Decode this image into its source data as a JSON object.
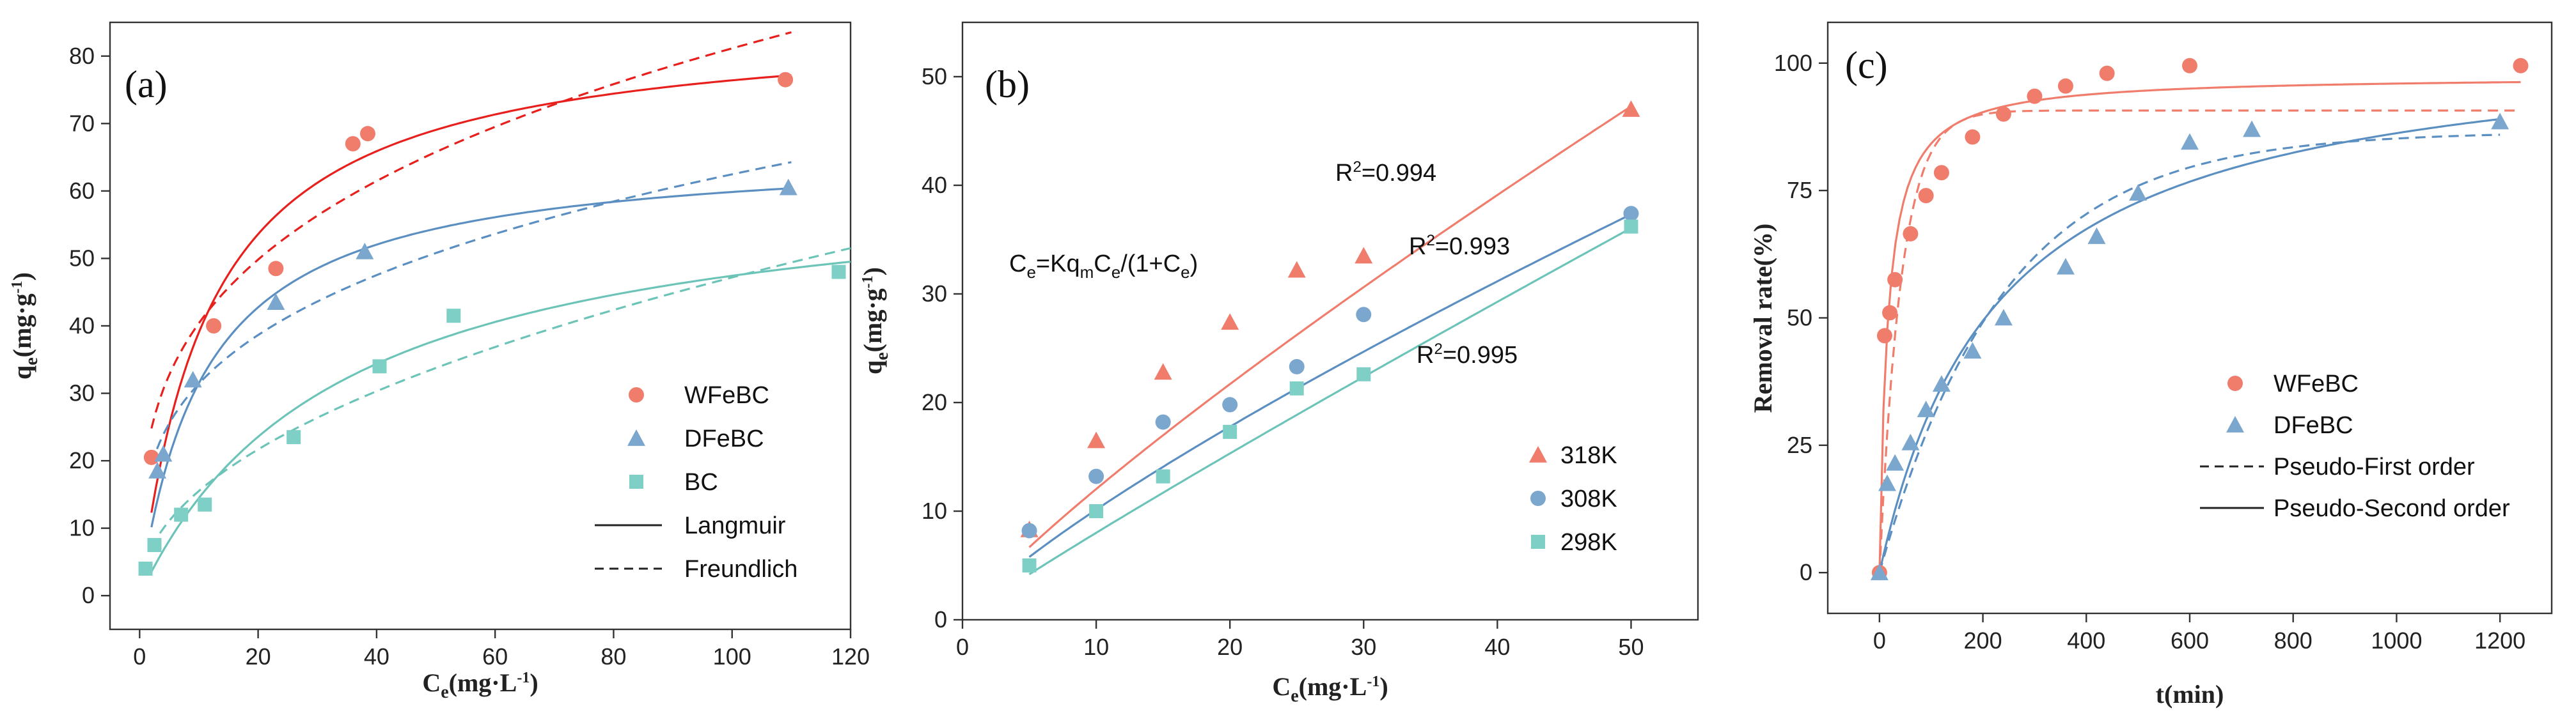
{
  "chart_data": [
    {
      "panel": "(a)",
      "type": "scatter",
      "xlabel": {
        "base": "C",
        "sub": "e",
        "rest": "(mg·L",
        "sup": "-1",
        "end": ")"
      },
      "ylabel": {
        "base": "q",
        "sub": "e",
        "rest": "(mg·g",
        "sup": "-1",
        "end": ")"
      },
      "xlim": [
        -5,
        120
      ],
      "ylim": [
        -5,
        85
      ],
      "xticks": [
        0,
        20,
        40,
        60,
        80,
        100,
        120
      ],
      "yticks": [
        0,
        10,
        20,
        30,
        40,
        50,
        60,
        70,
        80
      ],
      "series": [
        {
          "name": "WFeBC",
          "marker": "circle",
          "color": "#f07c6c",
          "points": [
            [
              2,
              20.5
            ],
            [
              12.5,
              40
            ],
            [
              23,
              48.5
            ],
            [
              36,
              67
            ],
            [
              38.5,
              68.5
            ],
            [
              109,
              76.5
            ]
          ],
          "fit_langmuir": {
            "qm": 85.5,
            "K": 0.084,
            "xmin": 2,
            "xmax": 110,
            "color": "#e8201d"
          },
          "fit_freundlich": {
            "kf": 20.1,
            "n": 3.3,
            "xmin": 2,
            "xmax": 110,
            "color": "#e8201d"
          }
        },
        {
          "name": "DFeBC",
          "marker": "triangle",
          "color": "#7ba7cf",
          "points": [
            [
              3,
              18.5
            ],
            [
              4,
              21
            ],
            [
              9,
              32
            ],
            [
              23,
              43.5
            ],
            [
              38,
              51
            ],
            [
              109.5,
              60.5
            ]
          ],
          "fit_langmuir": {
            "qm": 66.5,
            "K": 0.09,
            "xmin": 2,
            "xmax": 110,
            "color": "#5b8fc2"
          },
          "fit_freundlich": {
            "kf": 15.8,
            "n": 3.35,
            "xmin": 2,
            "xmax": 110,
            "color": "#5b8fc2"
          }
        },
        {
          "name": "BC",
          "marker": "square",
          "color": "#7ed0c7",
          "points": [
            [
              1,
              4
            ],
            [
              2.5,
              7.5
            ],
            [
              7,
              12
            ],
            [
              11,
              13.5
            ],
            [
              26,
              23.5
            ],
            [
              40.5,
              34
            ],
            [
              53,
              41.5
            ],
            [
              118,
              48
            ]
          ],
          "fit_langmuir": {
            "qm": 63.5,
            "K": 0.0295,
            "xmin": 2,
            "xmax": 120,
            "color": "#6cc4b9"
          },
          "fit_freundlich": {
            "kf": 5.1,
            "n": 2.07,
            "xmin": 2,
            "xmax": 120,
            "color": "#6cc4b9"
          }
        }
      ],
      "legend": {
        "placement": "bottom-right",
        "entries": [
          {
            "label": "WFeBC",
            "kind": "marker",
            "marker": "circle",
            "color": "#f07c6c"
          },
          {
            "label": "DFeBC",
            "kind": "marker",
            "marker": "triangle",
            "color": "#7ba7cf"
          },
          {
            "label": "BC",
            "kind": "marker",
            "marker": "square",
            "color": "#7ed0c7"
          },
          {
            "label": "Langmuir",
            "kind": "line",
            "dash": "solid",
            "color": "#222222"
          },
          {
            "label": "Freundlich",
            "kind": "line",
            "dash": "dashed",
            "color": "#222222"
          }
        ]
      }
    },
    {
      "panel": "(b)",
      "type": "scatter",
      "xlabel": {
        "base": "C",
        "sub": "e",
        "rest": "(mg·L",
        "sup": "-1",
        "end": ")"
      },
      "ylabel": {
        "base": "q",
        "sub": "e",
        "rest": "(mg·g",
        "sup": "-1",
        "end": ")"
      },
      "xlim": [
        0,
        55
      ],
      "ylim": [
        0,
        55
      ],
      "xticks": [
        0,
        10,
        20,
        30,
        40,
        50
      ],
      "yticks": [
        0,
        10,
        20,
        30,
        40,
        50
      ],
      "equation": {
        "text": "C",
        "parts": [
          [
            "C",
            ""
          ],
          [
            "e",
            "sub"
          ],
          [
            "=Kq",
            ""
          ],
          [
            "m",
            "sub"
          ],
          [
            "C",
            ""
          ],
          [
            "e",
            "sub"
          ],
          [
            "/(1+C",
            ""
          ],
          [
            "e",
            "sub"
          ],
          [
            ")",
            ""
          ]
        ]
      },
      "series": [
        {
          "name": "318K",
          "marker": "triangle",
          "color": "#f07c6c",
          "points": [
            [
              5,
              8.3
            ],
            [
              10,
              16.5
            ],
            [
              15,
              22.8
            ],
            [
              20,
              27.4
            ],
            [
              25,
              32.2
            ],
            [
              30,
              33.5
            ],
            [
              50,
              47
            ]
          ],
          "fit": {
            "a": 1.7,
            "b": 0.85,
            "xmin": 5,
            "xmax": 50,
            "color": "#f07c6c"
          },
          "r2": "R²=0.994",
          "r2_value": "0.994"
        },
        {
          "name": "308K",
          "marker": "circle",
          "color": "#7ba7cf",
          "points": [
            [
              5,
              8.2
            ],
            [
              10,
              13.2
            ],
            [
              15,
              18.2
            ],
            [
              20,
              19.8
            ],
            [
              25,
              23.3
            ],
            [
              30,
              28.1
            ],
            [
              50,
              37.4
            ]
          ],
          "fit": {
            "a": 1.57,
            "b": 0.81,
            "xmin": 5,
            "xmax": 50,
            "color": "#5b8fc2"
          },
          "r2": "R²=0.993",
          "r2_value": "0.993"
        },
        {
          "name": "298K",
          "marker": "square",
          "color": "#7ed0c7",
          "points": [
            [
              5,
              5
            ],
            [
              10,
              10
            ],
            [
              15,
              13.2
            ],
            [
              20,
              17.3
            ],
            [
              25,
              21.3
            ],
            [
              30,
              22.6
            ],
            [
              50,
              36.2
            ]
          ],
          "fit": {
            "a": 0.93,
            "b": 0.935,
            "xmin": 5,
            "xmax": 50,
            "color": "#6cc4b9"
          },
          "r2": "R²=0.995",
          "r2_value": "0.995"
        }
      ],
      "legend": {
        "placement": "bottom-right",
        "entries": [
          {
            "label": "318K",
            "kind": "marker",
            "marker": "triangle",
            "color": "#f07c6c"
          },
          {
            "label": "308K",
            "kind": "marker",
            "marker": "circle",
            "color": "#7ba7cf"
          },
          {
            "label": "298K",
            "kind": "marker",
            "marker": "square",
            "color": "#7ed0c7"
          }
        ]
      }
    },
    {
      "panel": "(c)",
      "type": "scatter",
      "xlabel": {
        "base": "t(min)"
      },
      "ylabel": {
        "base": "Removal rate(%)"
      },
      "xlim": [
        -100,
        1300
      ],
      "ylim": [
        -8,
        108
      ],
      "xticks": [
        0,
        200,
        400,
        600,
        800,
        1000,
        1200
      ],
      "yticks": [
        0,
        25,
        50,
        75,
        100
      ],
      "series": [
        {
          "name": "WFeBC",
          "marker": "circle",
          "color": "#f07c6c",
          "points": [
            [
              0,
              0
            ],
            [
              10,
              46.5
            ],
            [
              20,
              51
            ],
            [
              30,
              57.5
            ],
            [
              60,
              66.5
            ],
            [
              90,
              74
            ],
            [
              120,
              78.5
            ],
            [
              180,
              85.5
            ],
            [
              240,
              90
            ],
            [
              300,
              93.5
            ],
            [
              360,
              95.5
            ],
            [
              440,
              98
            ],
            [
              600,
              99.5
            ],
            [
              1240,
              99.5
            ]
          ],
          "fit_pfo": {
            "qe": 90.7,
            "k": 0.024,
            "xmax": 1240,
            "color": "#f07c6c"
          },
          "fit_pso": {
            "qe": 97.5,
            "k": 0.00065,
            "xmax": 1240,
            "color": "#f07c6c"
          }
        },
        {
          "name": "DFeBC",
          "marker": "triangle",
          "color": "#7ba7cf",
          "points": [
            [
              0,
              0
            ],
            [
              15,
              17.5
            ],
            [
              30,
              21.5
            ],
            [
              60,
              25.5
            ],
            [
              90,
              32
            ],
            [
              120,
              37
            ],
            [
              180,
              43.5
            ],
            [
              240,
              50
            ],
            [
              360,
              60
            ],
            [
              420,
              66
            ],
            [
              500,
              74.5
            ],
            [
              600,
              84.5
            ],
            [
              720,
              87
            ],
            [
              1200,
              88.5
            ]
          ],
          "fit_pfo": {
            "qe": 86.5,
            "k": 0.0042,
            "xmax": 1200,
            "color": "#5b8fc2"
          },
          "fit_pso": {
            "qe": 106,
            "k": 4.12e-05,
            "xmax": 1200,
            "color": "#5b8fc2"
          }
        }
      ],
      "legend": {
        "placement": "bottom-right",
        "entries": [
          {
            "label": "WFeBC",
            "kind": "marker",
            "marker": "circle",
            "color": "#f07c6c"
          },
          {
            "label": "DFeBC",
            "kind": "marker",
            "marker": "triangle",
            "color": "#7ba7cf"
          },
          {
            "label": "Pseudo-First order",
            "kind": "line",
            "dash": "dashed",
            "color": "#222222"
          },
          {
            "label": "Pseudo-Second order",
            "kind": "line",
            "dash": "solid",
            "color": "#222222"
          }
        ]
      }
    }
  ]
}
